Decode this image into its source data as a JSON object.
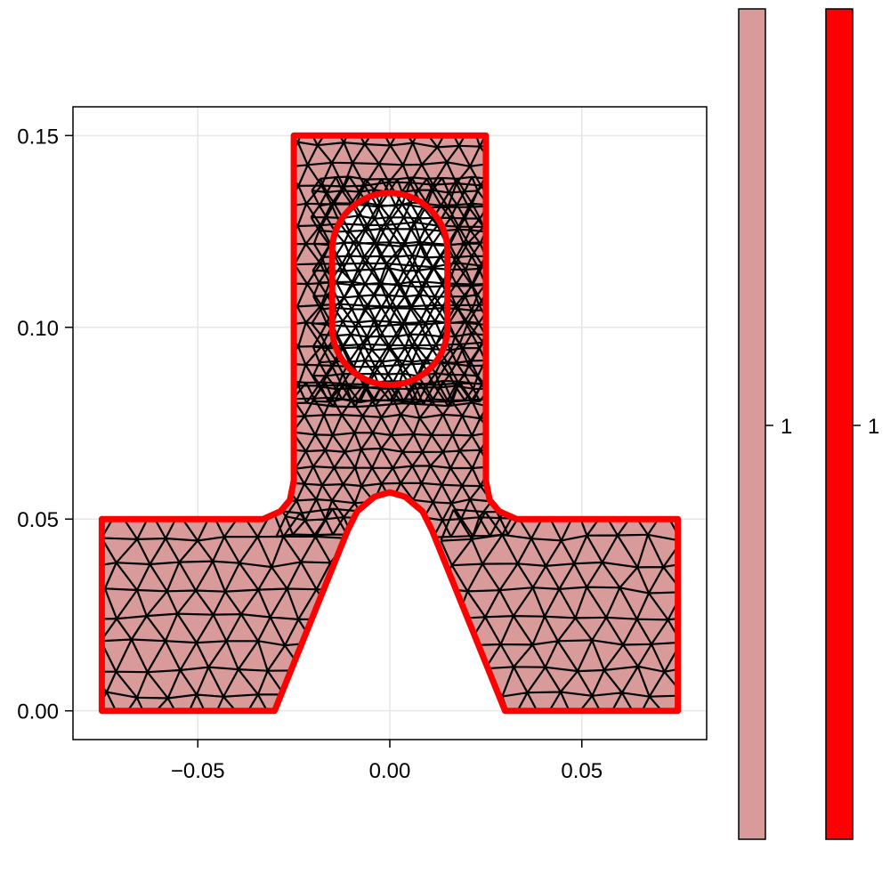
{
  "chart_data": {
    "type": "mesh",
    "title": "",
    "xlabel": "",
    "ylabel": "",
    "xlim": [
      -0.0825,
      0.0825
    ],
    "ylim": [
      -0.0075,
      0.1575
    ],
    "x_ticks": [
      -0.05,
      0.0,
      0.05
    ],
    "x_tick_labels": [
      "−0.05",
      "0.00",
      "0.05"
    ],
    "y_ticks": [
      0.0,
      0.05,
      0.1,
      0.15
    ],
    "y_tick_labels": [
      "0.00",
      "0.05",
      "0.10",
      "0.15"
    ],
    "grid": true,
    "colors": {
      "fill": "#d99a9a",
      "boundary": "#ff0000",
      "mesh_edges": "#000000",
      "grid": "#e6e6e6"
    },
    "geometry": {
      "outer_boundary": [
        [
          -0.075,
          0.0
        ],
        [
          -0.03,
          0.0
        ],
        [
          -0.011,
          0.047
        ],
        [
          -0.0085,
          0.052
        ],
        [
          -0.004,
          0.0558
        ],
        [
          0.0,
          0.057
        ],
        [
          0.004,
          0.0558
        ],
        [
          0.0085,
          0.052
        ],
        [
          0.011,
          0.047
        ],
        [
          0.03,
          0.0
        ],
        [
          0.075,
          0.0
        ],
        [
          0.075,
          0.05
        ],
        [
          0.033,
          0.05
        ],
        [
          0.0285,
          0.052
        ],
        [
          0.026,
          0.055
        ],
        [
          0.025,
          0.06
        ],
        [
          0.025,
          0.15
        ],
        [
          -0.025,
          0.15
        ],
        [
          -0.025,
          0.06
        ],
        [
          -0.026,
          0.055
        ],
        [
          -0.0285,
          0.052
        ],
        [
          -0.033,
          0.05
        ],
        [
          -0.075,
          0.05
        ]
      ],
      "hole": {
        "type": "stadium",
        "center_x": 0.0,
        "y_bottom_center": 0.1,
        "y_top_center": 0.12,
        "radius": 0.015
      }
    },
    "colorbars": [
      {
        "name": "fill",
        "color": "#d99a9a",
        "tick_label": "1"
      },
      {
        "name": "boundary",
        "color": "#ff0000",
        "tick_label": "1"
      }
    ]
  }
}
